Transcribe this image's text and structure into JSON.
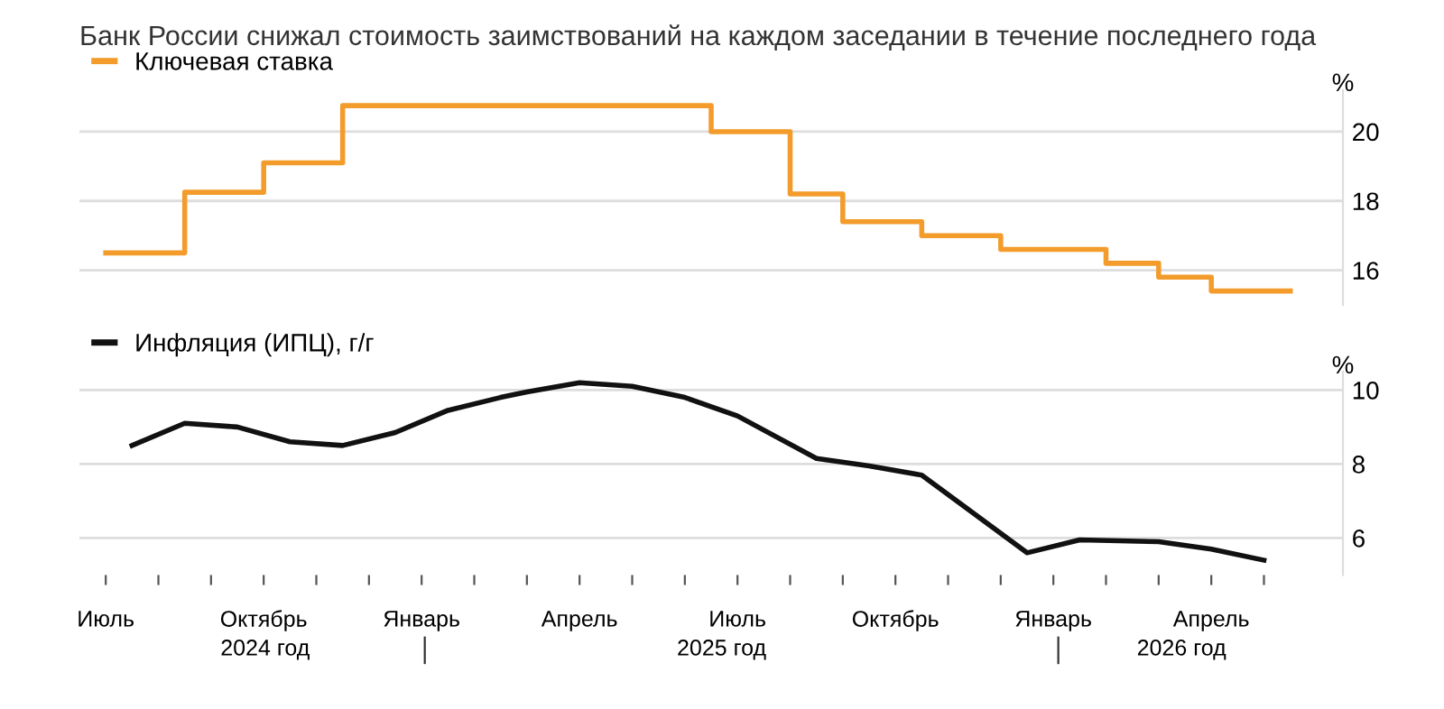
{
  "chart_data": [
    {
      "type": "step",
      "title": "Банк России снижал стоимость заимствований на каждом заседании в течение последнего года",
      "ylabel": "%",
      "legend": "top left",
      "grid": "y",
      "tick_labels": "y",
      "categories": [
        null,
        null,
        null,
        null,
        null,
        null,
        null,
        null,
        null,
        null,
        null,
        null,
        null,
        null,
        null,
        null,
        null,
        null,
        null,
        null,
        null,
        null,
        null,
        null,
        null,
        null,
        null,
        null,
        null,
        null,
        null,
        null,
        null,
        null,
        null,
        null,
        null,
        null,
        null,
        null,
        null,
        null,
        null,
        null,
        null,
        null
      ],
      "ylim": [
        15,
        21.2
      ],
      "yticks": [
        16,
        18,
        20
      ],
      "series": [
        {
          "name": "Ключевая ставка",
          "color": "#f39c2b",
          "values": [
            16.5,
            16.5,
            16.5,
            18.25,
            18.25,
            18.25,
            19.1,
            19.1,
            19.1,
            20.75,
            20.75,
            20.75,
            20.75,
            20.75,
            20.75,
            20.75,
            20.75,
            20.75,
            20.75,
            20.75,
            20.75,
            20.75,
            20.75,
            20,
            20,
            20,
            18.2,
            18.2,
            17.4,
            17.4,
            17.4,
            17,
            17,
            17,
            16.6,
            16.6,
            16.6,
            16.6,
            16.2,
            16.2,
            15.8,
            15.8,
            15.4,
            15.4,
            15.4,
            15.4
          ]
        }
      ]
    },
    {
      "type": "line",
      "ylabel": "%",
      "legend": "top left",
      "grid": "y",
      "categories": [
        "Июль",
        null,
        null,
        null,
        null,
        null,
        "Октябрь",
        null,
        null,
        null,
        null,
        null,
        "Январь",
        null,
        null,
        null,
        null,
        null,
        "Апрель",
        null,
        null,
        null,
        null,
        null,
        "Июль",
        null,
        null,
        null,
        null,
        null,
        "Октябрь",
        null,
        null,
        null,
        null,
        null,
        "Январь",
        null,
        null,
        null,
        null,
        null,
        "Апрель",
        null,
        null,
        null
      ],
      "ylim": [
        5,
        10.5
      ],
      "yticks": [
        6,
        8,
        10
      ],
      "x2lim": [
        "2024-06-16",
        "2026-06-14"
      ],
      "x2ticks": [
        {
          "value": "2024-10-01",
          "label": "2024 год"
        },
        {
          "value": "2025-01-01",
          "label": null
        },
        {
          "value": "2025-06-21",
          "label": "2025 год"
        },
        {
          "value": "2026-01-01",
          "label": null
        },
        {
          "value": "2026-03-13",
          "label": "2026 год"
        }
      ],
      "series": [
        {
          "name": "Инфляция (ИПЦ), г/г",
          "color": "#111111",
          "values": [
            null,
            8.5,
            null,
            9.1,
            null,
            9.0,
            null,
            8.6,
            null,
            8.5,
            null,
            8.85,
            null,
            9.45,
            null,
            9.8,
            9.95,
            null,
            10.2,
            null,
            10.1,
            null,
            9.8,
            null,
            9.3,
            null,
            null,
            8.15,
            null,
            7.95,
            null,
            7.7,
            null,
            null,
            null,
            5.6,
            null,
            5.95,
            null,
            null,
            5.9,
            null,
            5.7,
            null,
            5.4,
            null
          ]
        }
      ]
    }
  ]
}
